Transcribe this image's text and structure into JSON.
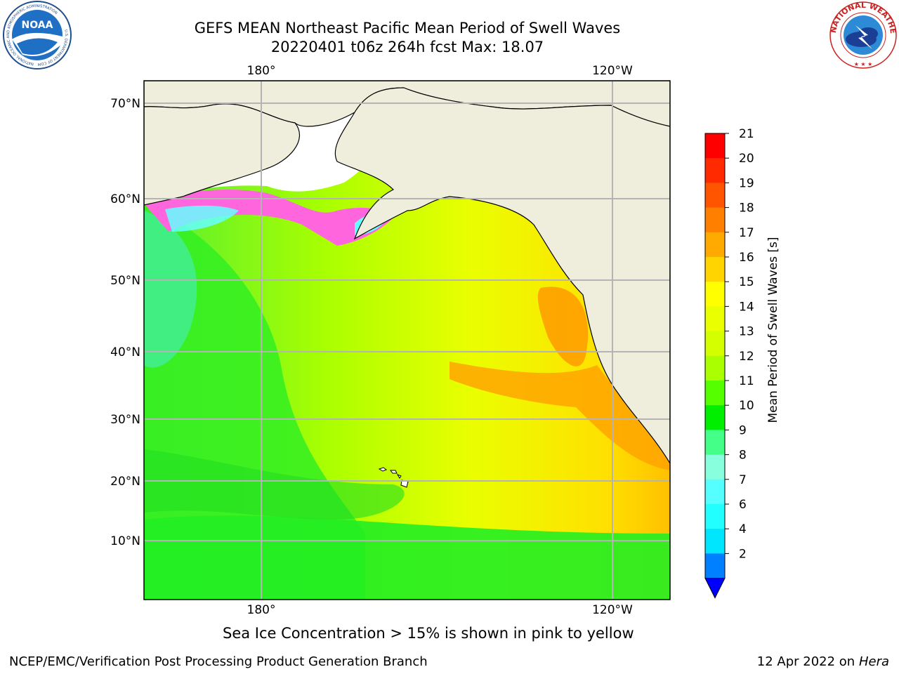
{
  "header": {
    "title_line1": "GEFS MEAN Northeast Pacific Mean Period of Swell Waves",
    "title_line2": "20220401 t06z 264h fcst   Max: 18.07"
  },
  "logos": {
    "left": {
      "name": "NOAA",
      "ring_text": "NATIONAL OCEANIC AND ATMOSPHERIC ADMINISTRATION",
      "bottom_text": "U.S. DEPARTMENT OF COMMERCE"
    },
    "right": {
      "ring_text": "NATIONAL WEATHER SERVICE"
    }
  },
  "map": {
    "lat_labels": [
      "70°N",
      "60°N",
      "50°N",
      "40°N",
      "30°N",
      "20°N",
      "10°N"
    ],
    "lon_labels_top": [
      "180°",
      "120°W"
    ],
    "lon_labels_bottom": [
      "180°",
      "120°W"
    ],
    "colors": {
      "land": "#efeedc",
      "ice_white": "#ffffff",
      "ice_pink": "#ff66dd",
      "grid": "#b4b4b4"
    }
  },
  "colorbar": {
    "label": "Mean Period of Swell Waves [s]",
    "ticks": [
      "21",
      "20",
      "19",
      "18",
      "17",
      "16",
      "15",
      "14",
      "13",
      "12",
      "11",
      "10",
      "9",
      "8",
      "7",
      "6",
      "4",
      "2"
    ],
    "colors": [
      "#ff0000",
      "#ff2a00",
      "#ff5500",
      "#ff8000",
      "#ffaa00",
      "#ffd400",
      "#ffff00",
      "#eaff00",
      "#d4ff00",
      "#aaff00",
      "#55ff00",
      "#00ee00",
      "#44ff88",
      "#88ffdd",
      "#55ffff",
      "#22ffff",
      "#00e6ff",
      "#0080ff"
    ],
    "under_color": "#0000ff"
  },
  "caption": "Sea Ice Concentration > 15% is shown in pink to yellow",
  "footer": {
    "left": "NCEP/EMC/Verification Post Processing Product Generation Branch",
    "right_date": "12 Apr 2022 on ",
    "right_host": "Hera"
  }
}
